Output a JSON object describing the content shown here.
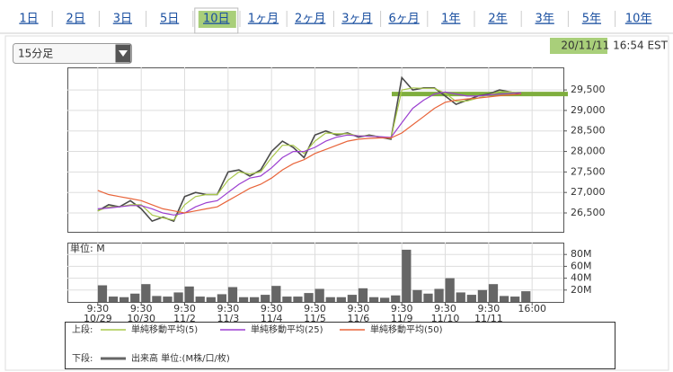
{
  "tabs": [
    "1日",
    "2日",
    "3日",
    "5日",
    "10日",
    "1ヶ月",
    "2ヶ月",
    "3ヶ月",
    "6ヶ月",
    "1年",
    "2年",
    "3年",
    "5年",
    "10年"
  ],
  "selected_tab": 4,
  "dropdown": "15分足",
  "timestamp": "20/11/11 16:54 EST",
  "legend_groups": [
    "上段:",
    "下段:"
  ],
  "chart_data": [
    {
      "type": "line",
      "x": [
        0,
        0.25,
        0.5,
        0.75,
        1,
        1.25,
        1.5,
        1.75,
        2,
        2.25,
        2.5,
        2.75,
        3,
        3.25,
        3.5,
        3.75,
        4,
        4.25,
        4.5,
        4.75,
        5,
        5.25,
        5.5,
        5.75,
        6,
        6.25,
        6.5,
        6.75,
        7,
        7.25,
        7.5,
        7.75,
        8,
        8.25,
        8.5,
        8.75,
        9,
        9.25,
        9.5,
        9.75
      ],
      "xlim": [
        -0.7,
        10.72
      ],
      "ylim": [
        26040,
        30050
      ],
      "yticks": [
        {
          "value": 26500,
          "label": "26,500"
        },
        {
          "value": 27000,
          "label": "27,000"
        },
        {
          "value": 27500,
          "label": "27,500"
        },
        {
          "value": 28000,
          "label": "28,000"
        },
        {
          "value": 28500,
          "label": "28,500"
        },
        {
          "value": 29000,
          "label": "29,000"
        },
        {
          "value": 29500,
          "label": "29,500"
        }
      ],
      "grid": true,
      "reference_line": {
        "value": 29400,
        "color": "#7fae3e"
      },
      "series": [
        {
          "color": "#4a4a4a",
          "values": [
            26550,
            26700,
            26650,
            26800,
            26600,
            26300,
            26400,
            26300,
            26900,
            27000,
            26950,
            26950,
            27500,
            27550,
            27400,
            27550,
            28000,
            28250,
            28100,
            27850,
            28400,
            28500,
            28400,
            28450,
            28350,
            28400,
            28350,
            28300,
            29800,
            29500,
            29550,
            29550,
            29350,
            29150,
            29250,
            29350,
            29400,
            29500,
            29450,
            29400
          ]
        },
        {
          "name": "単純移動平均(5)",
          "color": "#a9c84b",
          "values": [
            26550,
            26650,
            26650,
            26700,
            26700,
            26450,
            26380,
            26330,
            26700,
            26900,
            26950,
            26950,
            27300,
            27500,
            27450,
            27500,
            27850,
            28150,
            28150,
            27950,
            28250,
            28450,
            28430,
            28430,
            28380,
            28380,
            28360,
            28320,
            29500,
            29550,
            29540,
            29540,
            29420,
            29220,
            29230,
            29300,
            29380,
            29460,
            29450,
            29420
          ]
        },
        {
          "name": "単純移動平均(25)",
          "color": "#9b3fd0",
          "values": [
            26600,
            26620,
            26650,
            26680,
            26680,
            26600,
            26500,
            26450,
            26500,
            26650,
            26750,
            26800,
            27000,
            27200,
            27350,
            27400,
            27600,
            27850,
            28000,
            28000,
            28100,
            28250,
            28350,
            28400,
            28380,
            28370,
            28360,
            28340,
            28700,
            29050,
            29250,
            29400,
            29450,
            29400,
            29350,
            29350,
            29380,
            29400,
            29420,
            29430
          ]
        },
        {
          "name": "単純移動平均(50)",
          "color": "#e8643a",
          "values": [
            27050,
            26950,
            26900,
            26850,
            26800,
            26700,
            26600,
            26550,
            26500,
            26550,
            26600,
            26650,
            26800,
            26950,
            27100,
            27200,
            27350,
            27550,
            27700,
            27800,
            27950,
            28050,
            28150,
            28250,
            28300,
            28320,
            28330,
            28330,
            28450,
            28650,
            28850,
            29050,
            29200,
            29250,
            29280,
            29300,
            29330,
            29360,
            29380,
            29400
          ]
        }
      ]
    },
    {
      "type": "bar",
      "unit_label": "単位: M",
      "ylim": [
        0,
        100
      ],
      "yticks": [
        {
          "value": 20,
          "label": "20M"
        },
        {
          "value": 40,
          "label": "40M"
        },
        {
          "value": 60,
          "label": "60M"
        },
        {
          "value": 80,
          "label": "80M"
        }
      ],
      "xticks": [
        {
          "value": 0,
          "label": "9:30",
          "date": "10/29"
        },
        {
          "value": 1,
          "label": "9:30",
          "date": "10/30"
        },
        {
          "value": 2,
          "label": "9:30",
          "date": "11/2"
        },
        {
          "value": 3,
          "label": "9:30",
          "date": "11/3"
        },
        {
          "value": 4,
          "label": "9:30",
          "date": "11/4"
        },
        {
          "value": 5,
          "label": "9:30",
          "date": "11/5"
        },
        {
          "value": 6,
          "label": "9:30",
          "date": "11/6"
        },
        {
          "value": 7,
          "label": "9:30",
          "date": "11/9"
        },
        {
          "value": 8,
          "label": "9:30",
          "date": "11/10"
        },
        {
          "value": 9,
          "label": "9:30",
          "date": "11/11"
        },
        {
          "value": 10,
          "label": "16:00"
        }
      ],
      "series": [
        {
          "name": "出来高 単位:(M株/口/枚)",
          "color": "#666666",
          "values": [
            28,
            9,
            8,
            14,
            30,
            10,
            9,
            16,
            26,
            9,
            8,
            13,
            25,
            8,
            8,
            12,
            27,
            9,
            9,
            15,
            22,
            8,
            8,
            12,
            23,
            8,
            7,
            11,
            88,
            20,
            14,
            22,
            40,
            16,
            12,
            20,
            30,
            10,
            9,
            18
          ]
        }
      ]
    }
  ]
}
